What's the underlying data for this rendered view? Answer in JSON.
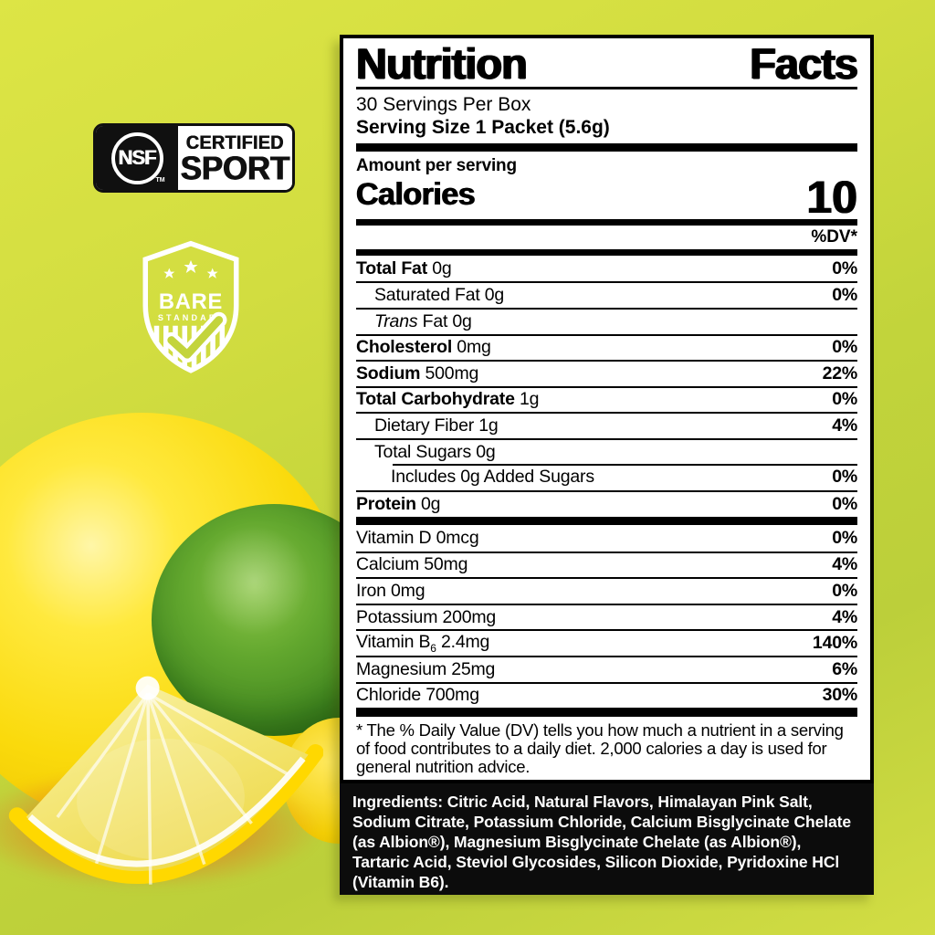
{
  "badges": {
    "nsf": {
      "org": "NSF",
      "tm": "TM",
      "certified": "CERTIFIED",
      "sport": "SPORT"
    },
    "bare": {
      "name": "BARE",
      "subtitle": "STANDARD"
    }
  },
  "label": {
    "title_word1": "Nutrition",
    "title_word2": "Facts",
    "servings_per_box": "30 Servings Per Box",
    "serving_size": "Serving Size 1 Packet (5.6g)",
    "amount_per_serving": "Amount per serving",
    "calories_label": "Calories",
    "calories_value": "10",
    "dv_header": "%DV*",
    "macro_rows": [
      {
        "parts": [
          {
            "t": "Total Fat",
            "s": "b"
          },
          {
            "t": " 0g"
          }
        ],
        "dv": "0%",
        "indent": 0
      },
      {
        "parts": [
          {
            "t": "Saturated Fat 0g"
          }
        ],
        "dv": "0%",
        "indent": 1
      },
      {
        "parts": [
          {
            "t": "Trans",
            "s": "i"
          },
          {
            "t": " Fat 0g"
          }
        ],
        "dv": "",
        "indent": 1
      },
      {
        "parts": [
          {
            "t": "Cholesterol",
            "s": "b"
          },
          {
            "t": " 0mg"
          }
        ],
        "dv": "0%",
        "indent": 0
      },
      {
        "parts": [
          {
            "t": "Sodium",
            "s": "b"
          },
          {
            "t": " 500mg"
          }
        ],
        "dv": "22%",
        "indent": 0
      },
      {
        "parts": [
          {
            "t": "Total Carbohydrate",
            "s": "b"
          },
          {
            "t": " 1g"
          }
        ],
        "dv": "0%",
        "indent": 0
      },
      {
        "parts": [
          {
            "t": "Dietary Fiber 1g"
          }
        ],
        "dv": "4%",
        "indent": 1
      },
      {
        "parts": [
          {
            "t": "Total Sugars 0g"
          }
        ],
        "dv": "",
        "indent": 1
      },
      {
        "parts": [
          {
            "t": "Includes 0g Added Sugars"
          }
        ],
        "dv": "0%",
        "indent": 2,
        "sep": "indent"
      },
      {
        "parts": [
          {
            "t": "Protein",
            "s": "b"
          },
          {
            "t": " 0g"
          }
        ],
        "dv": "0%",
        "indent": 0
      }
    ],
    "micro_rows": [
      {
        "parts": [
          {
            "t": "Vitamin D 0mcg"
          }
        ],
        "dv": "0%",
        "indent": 0
      },
      {
        "parts": [
          {
            "t": "Calcium 50mg"
          }
        ],
        "dv": "4%",
        "indent": 0
      },
      {
        "parts": [
          {
            "t": "Iron 0mg"
          }
        ],
        "dv": "0%",
        "indent": 0
      },
      {
        "parts": [
          {
            "t": "Potassium 200mg"
          }
        ],
        "dv": "4%",
        "indent": 0
      },
      {
        "parts": [
          {
            "t": "Vitamin B"
          },
          {
            "t": "6",
            "s": "sub"
          },
          {
            "t": " 2.4mg"
          }
        ],
        "dv": "140%",
        "indent": 0
      },
      {
        "parts": [
          {
            "t": "Magnesium 25mg"
          }
        ],
        "dv": "6%",
        "indent": 0
      },
      {
        "parts": [
          {
            "t": "Chloride 700mg"
          }
        ],
        "dv": "30%",
        "indent": 0
      }
    ],
    "footnote": "* The % Daily Value (DV) tells you how much a nutrient in a serving of food contributes to a daily diet. 2,000 calories a day is used for general nutrition advice."
  },
  "ingredients": {
    "text": "Ingredients: Citric Acid, Natural Flavors, Himalayan Pink Salt, Sodium Citrate, Potassium Chloride, Calcium Bisglycinate Chelate (as Albion®), Magnesium Bisglycinate Chelate (as Albion®), Tartaric Acid, Steviol Glycosides, Silicon Dioxide, Pyridoxine HCl (Vitamin B6)."
  },
  "colors": {
    "background": "#c9d63d",
    "label_bg": "#ffffff",
    "label_text": "#000000",
    "ingredients_bg": "#0c0c0c",
    "ingredients_text": "#ffffff",
    "lemon": "#f9da0c",
    "lime": "#4a8c22",
    "badge_black": "#101010"
  }
}
